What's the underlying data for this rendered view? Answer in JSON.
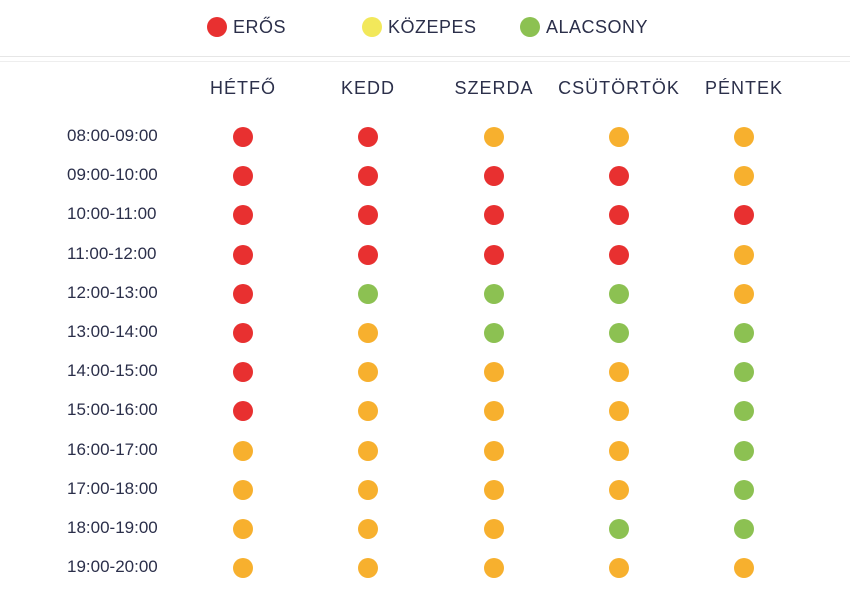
{
  "legend": [
    {
      "label": "ERŐS",
      "color": "#e83030"
    },
    {
      "label": "KÖZEPES",
      "color": "#f2e85a"
    },
    {
      "label": "ALACSONY",
      "color": "#8cc152"
    }
  ],
  "colors": {
    "high": "#e83030",
    "medium": "#f7b02e",
    "low": "#8cc152"
  },
  "chart_data": {
    "type": "table",
    "columns": [
      "HÉTFŐ",
      "KEDD",
      "SZERDA",
      "CSÜTÖRTÖK",
      "PÉNTEK"
    ],
    "rows": [
      "08:00-09:00",
      "09:00-10:00",
      "10:00-11:00",
      "11:00-12:00",
      "12:00-13:00",
      "13:00-14:00",
      "14:00-15:00",
      "15:00-16:00",
      "16:00-17:00",
      "17:00-18:00",
      "18:00-19:00",
      "19:00-20:00"
    ],
    "levels": [
      [
        "high",
        "high",
        "medium",
        "medium",
        "medium"
      ],
      [
        "high",
        "high",
        "high",
        "high",
        "medium"
      ],
      [
        "high",
        "high",
        "high",
        "high",
        "high"
      ],
      [
        "high",
        "high",
        "high",
        "high",
        "medium"
      ],
      [
        "high",
        "low",
        "low",
        "low",
        "medium"
      ],
      [
        "high",
        "medium",
        "low",
        "low",
        "low"
      ],
      [
        "high",
        "medium",
        "medium",
        "medium",
        "low"
      ],
      [
        "high",
        "medium",
        "medium",
        "medium",
        "low"
      ],
      [
        "medium",
        "medium",
        "medium",
        "medium",
        "low"
      ],
      [
        "medium",
        "medium",
        "medium",
        "medium",
        "low"
      ],
      [
        "medium",
        "medium",
        "medium",
        "low",
        "low"
      ],
      [
        "medium",
        "medium",
        "medium",
        "medium",
        "medium"
      ]
    ]
  }
}
